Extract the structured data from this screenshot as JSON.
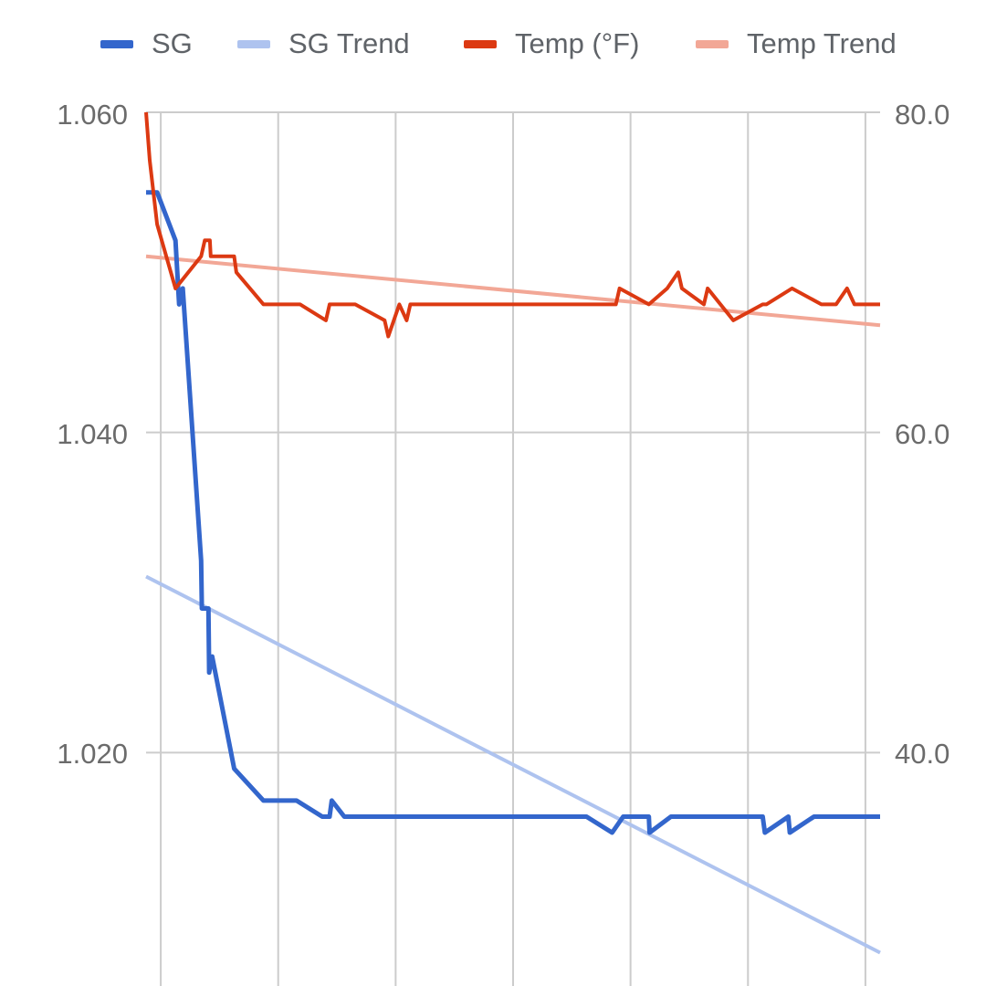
{
  "chart_data": {
    "type": "line",
    "legend_position": "top",
    "grid": true,
    "y_left": {
      "ticks": [
        "1.060",
        "1.040",
        "1.020"
      ],
      "tick_values": [
        1.06,
        1.04,
        1.02
      ],
      "range": [
        1.0,
        1.06
      ]
    },
    "y_right": {
      "ticks": [
        "80.0",
        "60.0",
        "40.0"
      ],
      "tick_values": [
        80,
        60,
        40
      ],
      "range": [
        20,
        80
      ]
    },
    "x_range": [
      0,
      100
    ],
    "vertical_gridlines": [
      2,
      18,
      34,
      50,
      66,
      82,
      98
    ],
    "series": [
      {
        "name": "SG",
        "axis": "left",
        "color": "#3366cc",
        "width": 5,
        "points": [
          [
            0,
            1.055
          ],
          [
            1.5,
            1.055
          ],
          [
            4,
            1.052
          ],
          [
            4.5,
            1.048
          ],
          [
            5,
            1.049
          ],
          [
            7.5,
            1.032
          ],
          [
            7.6,
            1.029
          ],
          [
            8.5,
            1.029
          ],
          [
            8.6,
            1.025
          ],
          [
            9,
            1.026
          ],
          [
            12,
            1.019
          ],
          [
            16,
            1.017
          ],
          [
            20.5,
            1.017
          ],
          [
            24,
            1.016
          ],
          [
            25,
            1.016
          ],
          [
            25.3,
            1.017
          ],
          [
            27,
            1.016
          ],
          [
            60,
            1.016
          ],
          [
            63.5,
            1.015
          ],
          [
            65,
            1.016
          ],
          [
            68.5,
            1.016
          ],
          [
            68.6,
            1.015
          ],
          [
            71.5,
            1.016
          ],
          [
            84,
            1.016
          ],
          [
            84.3,
            1.015
          ],
          [
            87.5,
            1.016
          ],
          [
            87.7,
            1.015
          ],
          [
            91,
            1.016
          ],
          [
            100,
            1.016
          ]
        ]
      },
      {
        "name": "SG Trend",
        "axis": "left",
        "color": "#aec3ef",
        "width": 4,
        "points": [
          [
            0,
            1.031
          ],
          [
            100,
            1.0075
          ]
        ]
      },
      {
        "name": "Temp (°F)",
        "axis": "right",
        "color": "#dc3912",
        "width": 4,
        "points": [
          [
            0,
            80
          ],
          [
            0.5,
            77
          ],
          [
            1.5,
            73
          ],
          [
            4,
            69
          ],
          [
            7.5,
            71
          ],
          [
            8,
            72
          ],
          [
            8.7,
            72
          ],
          [
            8.8,
            71
          ],
          [
            12,
            71
          ],
          [
            12.3,
            70
          ],
          [
            16,
            68
          ],
          [
            21,
            68
          ],
          [
            24.5,
            67
          ],
          [
            25,
            68
          ],
          [
            28.5,
            68
          ],
          [
            32.5,
            67
          ],
          [
            33,
            66
          ],
          [
            34.5,
            68
          ],
          [
            35.5,
            67
          ],
          [
            36,
            68
          ],
          [
            64,
            68
          ],
          [
            64.5,
            69
          ],
          [
            68.5,
            68
          ],
          [
            71,
            69
          ],
          [
            72.5,
            70
          ],
          [
            73,
            69
          ],
          [
            76,
            68
          ],
          [
            76.5,
            69
          ],
          [
            80,
            67
          ],
          [
            84,
            68
          ],
          [
            84.5,
            68
          ],
          [
            88,
            69
          ],
          [
            92,
            68
          ],
          [
            94,
            68
          ],
          [
            95.5,
            69
          ],
          [
            96.5,
            68
          ],
          [
            100,
            68
          ]
        ]
      },
      {
        "name": "Temp Trend",
        "axis": "right",
        "color": "#f2a796",
        "width": 4,
        "points": [
          [
            0,
            71
          ],
          [
            100,
            66.7
          ]
        ]
      }
    ]
  }
}
